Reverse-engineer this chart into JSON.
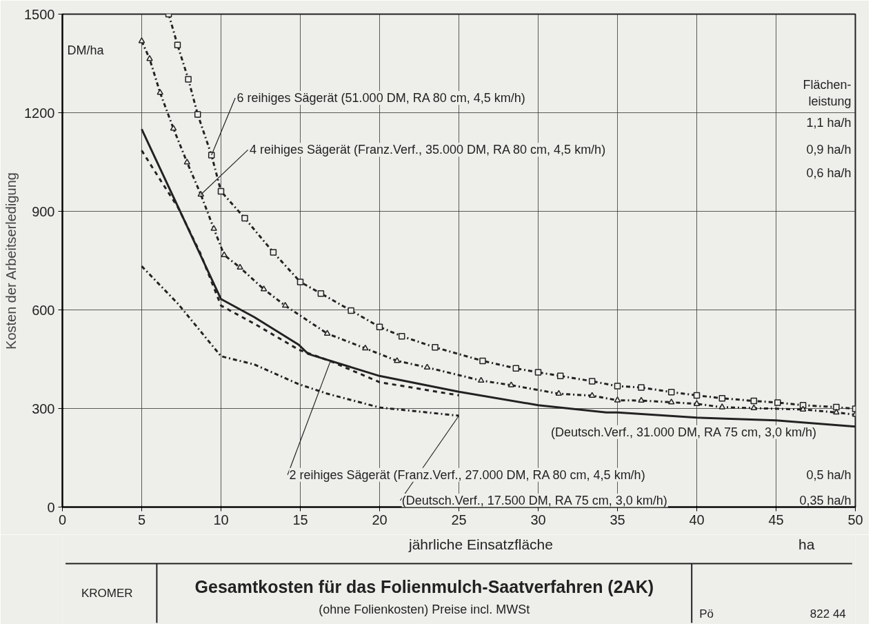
{
  "chart_data": {
    "type": "line",
    "title": "Gesamtkosten für das Folienmulch-Saatverfahren (2AK)",
    "subtitle": "(ohne Folienkosten) Preise incl. MWSt",
    "xlabel": "jährliche Einsatzfläche",
    "ylabel": "Kosten der Arbeitserledigung",
    "xlim": [
      0,
      50
    ],
    "xticks": [
      0,
      5,
      10,
      15,
      20,
      25,
      30,
      35,
      40,
      45,
      50
    ],
    "ylim": [
      0,
      1500
    ],
    "yticks": [
      0,
      300,
      600,
      900,
      1200,
      1500
    ],
    "grid": true,
    "series": [
      {
        "name": "6 reihiges Sägerät (51.000 DM, RA 80 cm, 4,5 km/h)",
        "color": "#222222",
        "marker": "square",
        "line_style": "dashdot",
        "x": [
          6.7,
          7.26,
          7.94,
          8.53,
          9.4,
          10,
          11.5,
          13.3,
          15,
          16.3,
          18.2,
          20,
          21.4,
          23.5,
          26.5,
          28.6,
          30,
          31.4,
          33.4,
          35,
          36.5,
          38.4,
          40,
          41.6,
          43.6,
          45.1,
          46.7,
          48.8,
          50
        ],
        "values": [
          1500,
          1406,
          1302,
          1195,
          1071,
          961,
          879,
          775,
          685,
          650,
          598,
          548,
          520,
          486,
          445,
          422,
          410,
          399,
          383,
          368,
          364,
          350,
          340,
          331,
          323,
          318,
          310,
          304,
          299
        ]
      },
      {
        "name": "4 reihiges Sägerät (Franz.Verf., 35.000 DM, RA 80 cm, 4,5 km/h)",
        "color": "#222222",
        "marker": "triangle",
        "line_style": "dashdot",
        "x": [
          5,
          5.5,
          6.16,
          7,
          7.86,
          8.73,
          9.55,
          10.2,
          11.2,
          12.7,
          14.05,
          16.7,
          19.1,
          21.1,
          23,
          26.4,
          28.3,
          31.3,
          33.4,
          35,
          36.5,
          38.4,
          40,
          41.6,
          43.6,
          46.7,
          48.8,
          50
        ],
        "values": [
          1418,
          1364,
          1261,
          1152,
          1049,
          951,
          847,
          767,
          729,
          663,
          613,
          528,
          483,
          445,
          425,
          385,
          371,
          345,
          339,
          325,
          324,
          319,
          314,
          304,
          301,
          297,
          288,
          281
        ]
      },
      {
        "name": "(Deutsch.Verf., 31.000 DM, RA 75 cm, 3,0 km/h)",
        "color": "#222222",
        "marker": "none",
        "line_style": "solid",
        "x": [
          5,
          7.5,
          10,
          12.1,
          14.9,
          15.5,
          20,
          25,
          30,
          34.3,
          35,
          40,
          45,
          50
        ],
        "values": [
          1150,
          892,
          633,
          578,
          494,
          466,
          399,
          351,
          310,
          288,
          288,
          272,
          264,
          245
        ]
      },
      {
        "name": "2 reihiges Sägerät (Franz.Verf., 27.000 DM, RA 80 cm, 4,5 km/h)",
        "color": "#222222",
        "marker": "none",
        "line_style": "dashed",
        "x": [
          5,
          6.1,
          7.3,
          8.7,
          10,
          12.1,
          14.9,
          16.9,
          20,
          25
        ],
        "values": [
          1085,
          1001,
          911,
          772,
          613,
          558,
          479,
          444,
          380,
          340
        ]
      },
      {
        "name": "(Deutsch.Verf., 17.500 DM, RA 75 cm, 3,0 km/h)",
        "color": "#222222",
        "marker": "none",
        "line_style": "dashdot",
        "x": [
          5,
          7.3,
          10,
          12.1,
          14.9,
          16.7,
          20,
          25
        ],
        "values": [
          733,
          618,
          459,
          434,
          374,
          345,
          303,
          278
        ]
      }
    ],
    "annotations": [
      "DM/ha",
      "ha",
      "Flächen-\nleistung",
      "1,1 ha/h",
      "0,9 ha/h",
      "0,6 ha/h",
      "0,5 ha/h",
      "0,35 ha/h",
      "KROMER",
      "Pö",
      "822 44"
    ]
  }
}
